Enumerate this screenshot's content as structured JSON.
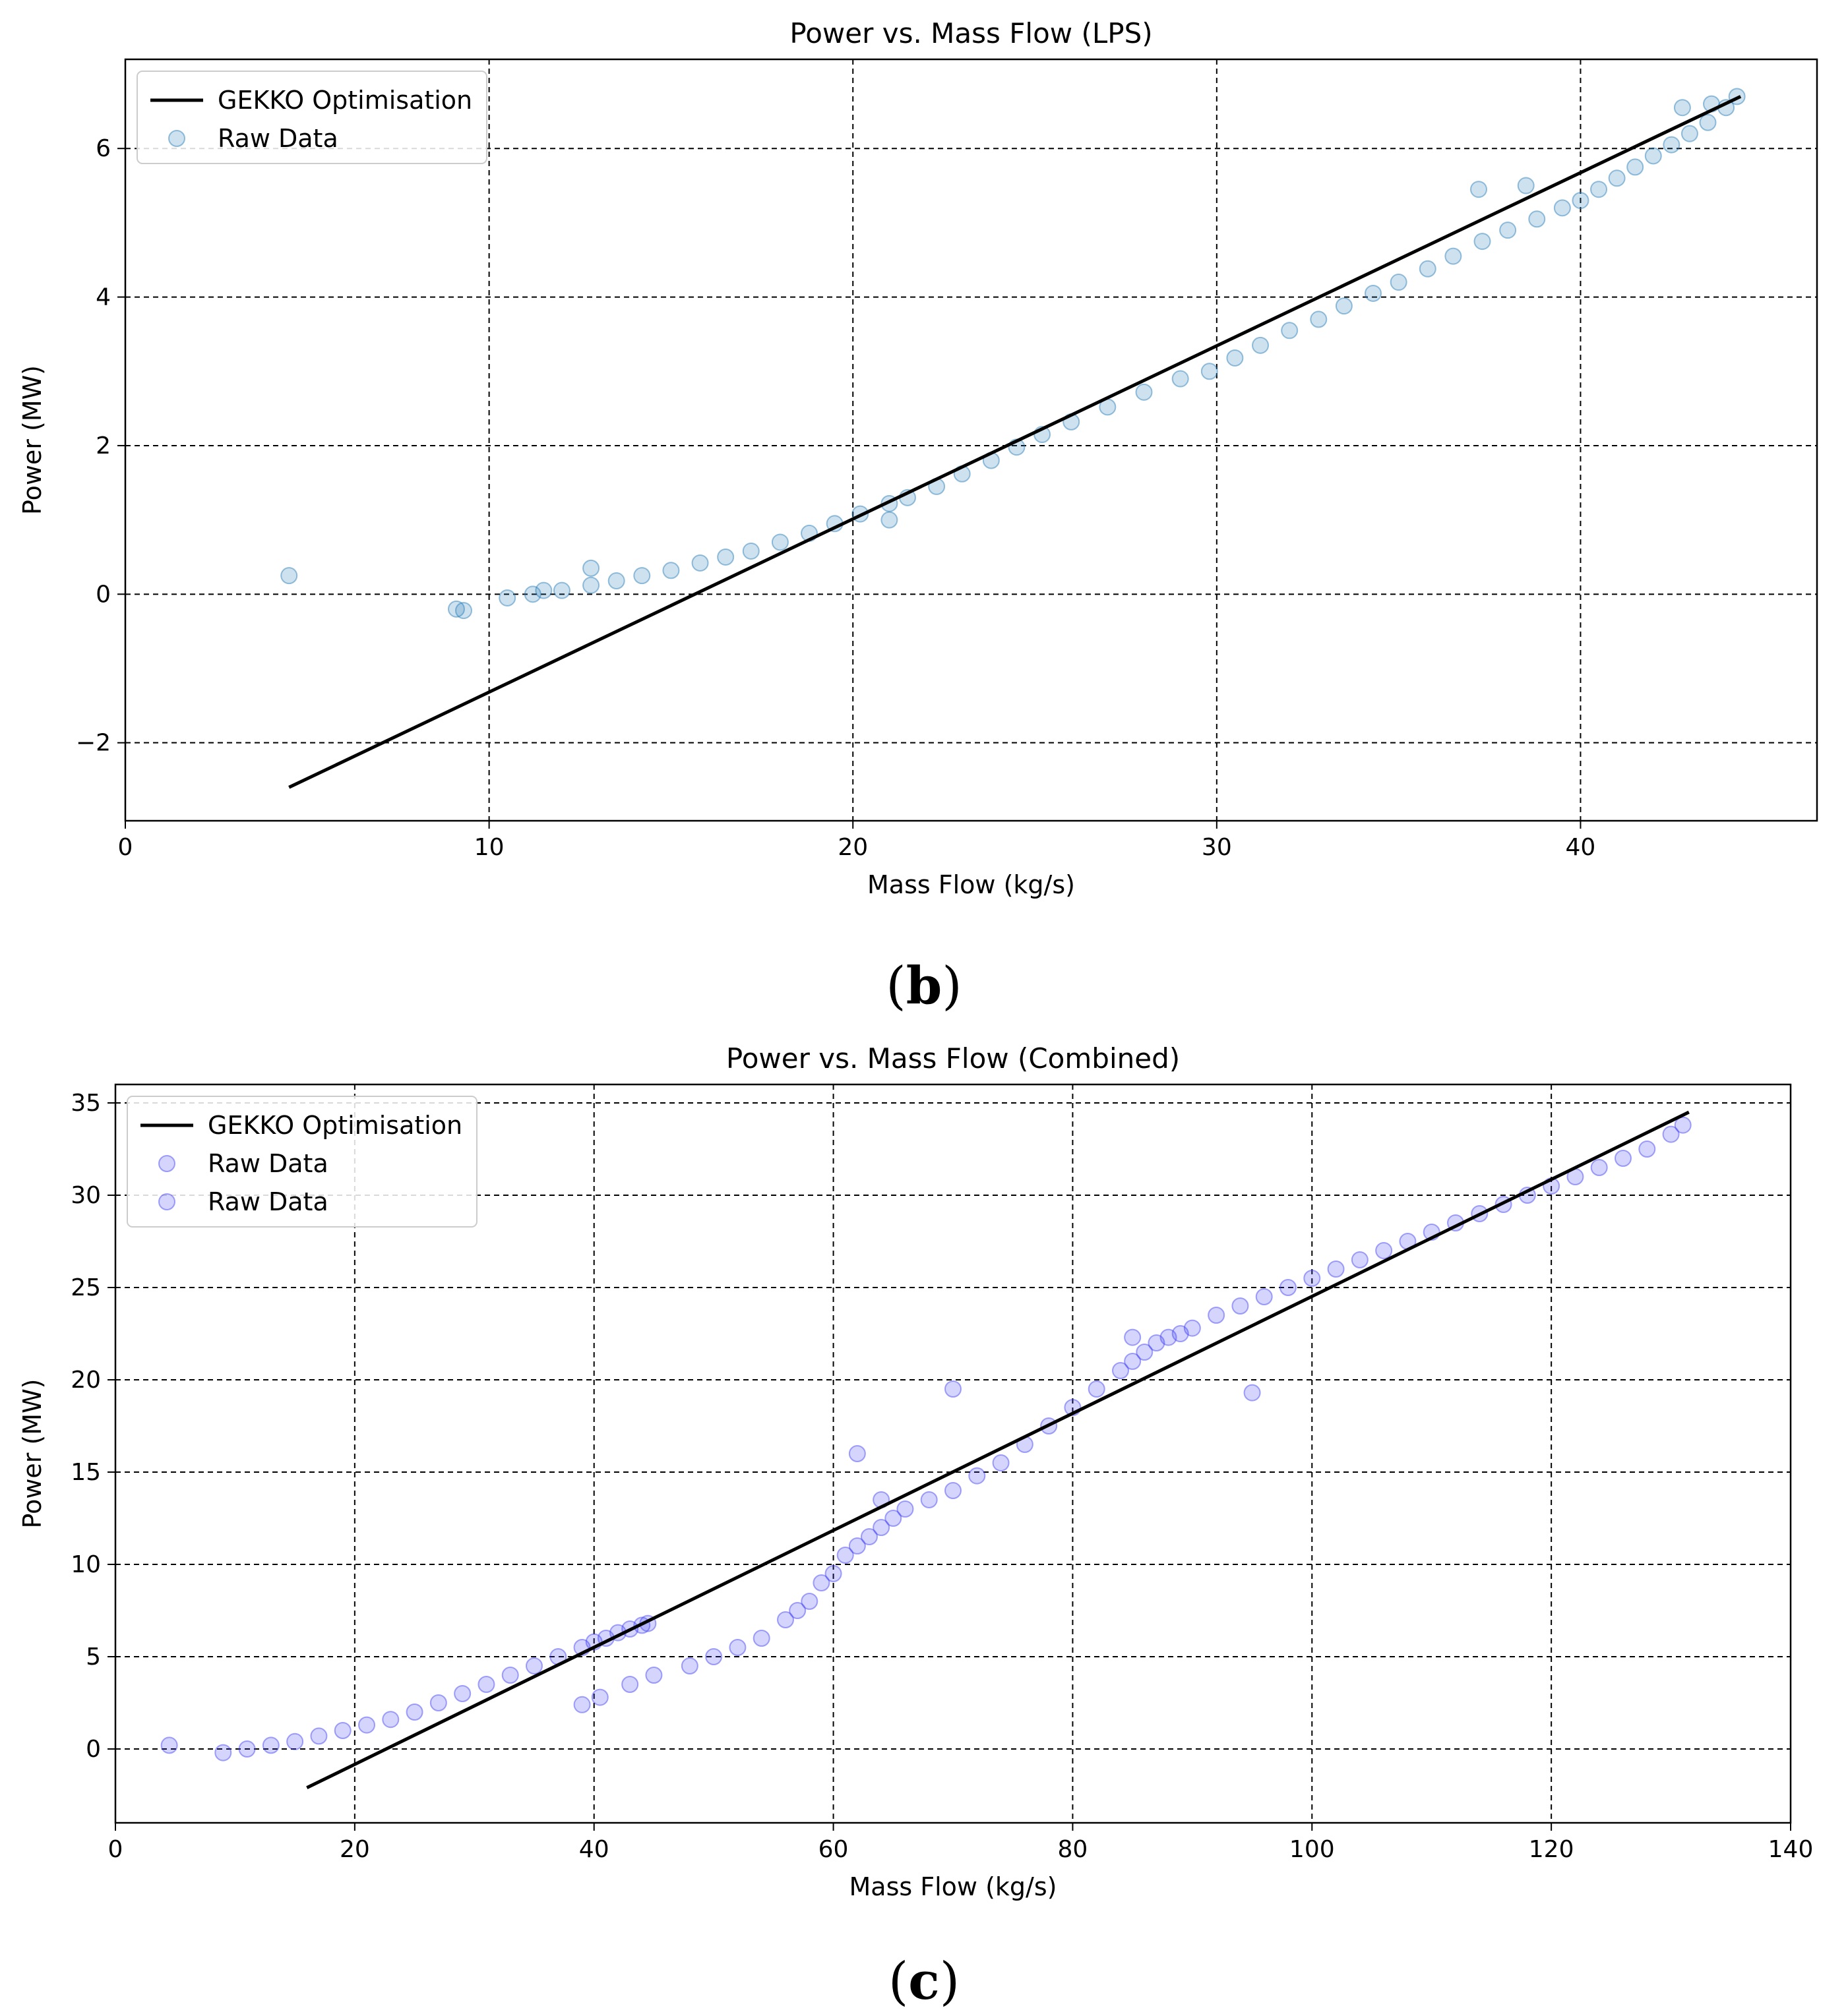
{
  "panel_labels": {
    "b": "b",
    "c": "c"
  },
  "chart_data": [
    {
      "type": "scatter",
      "title": "Power vs. Mass Flow (LPS)",
      "xlabel": "Mass Flow (kg/s)",
      "ylabel": "Power (MW)",
      "xlim": [
        0,
        46.5
      ],
      "ylim": [
        -3.05,
        7.2
      ],
      "xticks": [
        0,
        10,
        20,
        30,
        40
      ],
      "yticks": [
        -2,
        0,
        2,
        4,
        6
      ],
      "tick_labels_x": [
        "0",
        "10",
        "20",
        "30",
        "40"
      ],
      "tick_labels_y": [
        "−2",
        "0",
        "2",
        "4",
        "6"
      ],
      "grid": true,
      "legend_position": "top-left",
      "legend": [
        "GEKKO Optimisation",
        "Raw Data"
      ],
      "colors": {
        "line": "#000000",
        "points": "#1f77b4"
      },
      "series": [
        {
          "name": "GEKKO Optimisation",
          "kind": "line",
          "x": [
            4.5,
            44.4
          ],
          "y": [
            -2.6,
            6.7
          ]
        },
        {
          "name": "Raw Data",
          "kind": "scatter",
          "x": [
            4.5,
            9.1,
            9.3,
            10.5,
            11.2,
            11.5,
            12.0,
            12.8,
            13.5,
            14.2,
            15.0,
            15.8,
            16.5,
            17.2,
            18.0,
            18.8,
            19.5,
            20.2,
            21.0,
            21.5,
            22.3,
            23.0,
            23.8,
            24.5,
            25.2,
            26.0,
            27.0,
            28.0,
            29.0,
            29.8,
            30.5,
            31.2,
            32.0,
            32.8,
            33.5,
            34.3,
            35.0,
            35.8,
            36.5,
            37.3,
            38.0,
            38.8,
            39.5,
            40.0,
            40.5,
            41.0,
            41.5,
            42.0,
            42.5,
            43.0,
            43.5,
            44.0,
            44.3,
            42.8,
            43.6,
            38.5,
            37.2,
            21.0,
            12.8
          ],
          "y": [
            0.25,
            -0.2,
            -0.22,
            -0.05,
            0.0,
            0.05,
            0.05,
            0.12,
            0.18,
            0.25,
            0.32,
            0.42,
            0.5,
            0.58,
            0.7,
            0.82,
            0.95,
            1.08,
            1.22,
            1.3,
            1.45,
            1.62,
            1.8,
            1.98,
            2.15,
            2.32,
            2.52,
            2.72,
            2.9,
            3.0,
            3.18,
            3.35,
            3.55,
            3.7,
            3.88,
            4.05,
            4.2,
            4.38,
            4.55,
            4.75,
            4.9,
            5.05,
            5.2,
            5.3,
            5.45,
            5.6,
            5.75,
            5.9,
            6.05,
            6.2,
            6.35,
            6.55,
            6.7,
            6.55,
            6.6,
            5.5,
            5.45,
            1.0,
            0.35
          ]
        }
      ]
    },
    {
      "type": "scatter",
      "title": "Power vs. Mass Flow (Combined)",
      "xlabel": "Mass Flow (kg/s)",
      "ylabel": "Power (MW)",
      "xlim": [
        0,
        140
      ],
      "ylim": [
        -4,
        36
      ],
      "xticks": [
        0,
        20,
        40,
        60,
        80,
        100,
        120,
        140
      ],
      "yticks": [
        0,
        5,
        10,
        15,
        20,
        25,
        30,
        35
      ],
      "tick_labels_x": [
        "0",
        "20",
        "40",
        "60",
        "80",
        "100",
        "120",
        "140"
      ],
      "tick_labels_y": [
        "0",
        "5",
        "10",
        "15",
        "20",
        "25",
        "30",
        "35"
      ],
      "grid": true,
      "legend_position": "top-left",
      "legend": [
        "GEKKO Optimisation",
        "Raw Data",
        "Raw Data"
      ],
      "colors": {
        "line": "#000000",
        "points": "#3b3bf5"
      },
      "series": [
        {
          "name": "GEKKO Optimisation",
          "kind": "line",
          "x": [
            16,
            131.5
          ],
          "y": [
            -2.1,
            34.5
          ]
        },
        {
          "name": "Raw Data",
          "kind": "scatter",
          "x": [
            4.5,
            9,
            11,
            13,
            15,
            17,
            19,
            21,
            23,
            25,
            27,
            29,
            31,
            33,
            35,
            37,
            39,
            40,
            41,
            42,
            43,
            44,
            44.5,
            39,
            40.5,
            43
          ],
          "y": [
            0.2,
            -0.2,
            0.0,
            0.2,
            0.4,
            0.7,
            1.0,
            1.3,
            1.6,
            2.0,
            2.5,
            3.0,
            3.5,
            4.0,
            4.5,
            5.0,
            5.5,
            5.8,
            6.0,
            6.3,
            6.5,
            6.7,
            6.8,
            2.4,
            2.8,
            3.5
          ]
        },
        {
          "name": "Raw Data",
          "kind": "scatter",
          "x": [
            45,
            48,
            50,
            52,
            54,
            56,
            57,
            58,
            59,
            60,
            61,
            62,
            63,
            64,
            65,
            66,
            68,
            70,
            72,
            74,
            76,
            78,
            80,
            82,
            84,
            85,
            86,
            87,
            88,
            89,
            90,
            92,
            94,
            96,
            98,
            100,
            102,
            104,
            106,
            108,
            110,
            112,
            114,
            116,
            118,
            120,
            122,
            124,
            126,
            128,
            130,
            131,
            70,
            95,
            85,
            62,
            64
          ],
          "y": [
            4.0,
            4.5,
            5.0,
            5.5,
            6.0,
            7.0,
            7.5,
            8.0,
            9.0,
            9.5,
            10.5,
            11.0,
            11.5,
            12.0,
            12.5,
            13.0,
            13.5,
            14.0,
            14.8,
            15.5,
            16.5,
            17.5,
            18.5,
            19.5,
            20.5,
            21.0,
            21.5,
            22.0,
            22.3,
            22.5,
            22.8,
            23.5,
            24.0,
            24.5,
            25.0,
            25.5,
            26.0,
            26.5,
            27.0,
            27.5,
            28.0,
            28.5,
            29.0,
            29.5,
            30.0,
            30.5,
            31.0,
            31.5,
            32.0,
            32.5,
            33.3,
            33.8,
            19.5,
            19.3,
            22.3,
            16.0,
            13.5
          ]
        }
      ]
    }
  ]
}
